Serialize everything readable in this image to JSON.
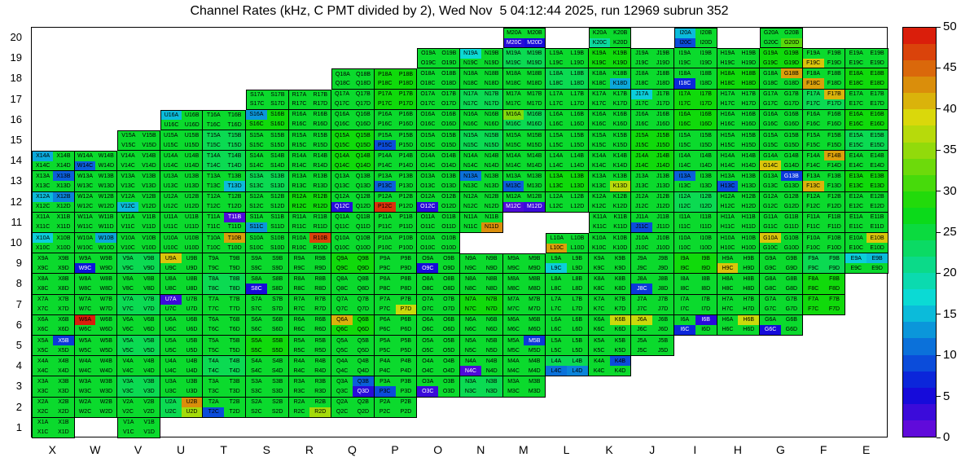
{
  "chart_data": {
    "type": "heatmap",
    "title": "Channel Rates (kHz, C PMT divided by 2), Wed Nov  5 04:12:44 2025, run 12969 subrun 352",
    "value_unit": "kHz",
    "columns": [
      "X",
      "W",
      "V",
      "U",
      "T",
      "S",
      "R",
      "Q",
      "P",
      "O",
      "N",
      "M",
      "L",
      "K",
      "J",
      "I",
      "H",
      "G",
      "F",
      "E"
    ],
    "rows": [
      20,
      19,
      18,
      17,
      16,
      15,
      14,
      13,
      12,
      11,
      10,
      9,
      8,
      7,
      6,
      5,
      4,
      3,
      2,
      1
    ],
    "sub_cells": [
      "A",
      "B",
      "C",
      "D"
    ],
    "colorbar": {
      "min": 0,
      "max": 50,
      "ticks": [
        0,
        5,
        10,
        15,
        20,
        25,
        30,
        35,
        40,
        45,
        50
      ]
    },
    "value_scale_per_char": 2,
    "row_block_values": {
      "20": "...........d.d.d.d..",
      "19": ".........ddcdedddedd",
      "18": ".......dedddcdddedde",
      "17": ".....dddedcddddeddcd",
      "16": "...ddedddddcdddeddde",
      "15": "..ddcddeddcdddeddddc",
      "14": "ddddcddeddddddeddddd",
      "13": "dddddcddddddedddddde",
      "12": "ddddddeddddddddcdddd",
      "11": "ddddddddddd..ddddddd",
      "10": "dddddddddd..dddddddd",
      "9": "ddcddddedddddddeddcd",
      "8": "ddddcddddddddddddde.",
      "7": "ddcdddddddeddddddde.",
      "6": "dddddddedddddddddd..",
      "5": "ddcddeddddddddd.....",
      "4": "ddddcdddddddcd......",
      "3": "ddcdddddddcd........",
      "2": "dddcddddd...........",
      "1": "d.d................."
    },
    "cell_value_overrides": {
      "X14A": 14,
      "X13B": 10,
      "X12A": 15,
      "X12B": 12,
      "X10A": 16,
      "X5B": 8,
      "W14C": 10,
      "W10B": 14,
      "W9C": 6,
      "W6A": 49,
      "V12C": 15,
      "U16A": 15,
      "U9A": 40,
      "U7A": 3,
      "U2B": 43,
      "U2D": 36,
      "T13D": 15,
      "T11B": 2,
      "T10B": 42,
      "T2C": 9,
      "S16A": 13,
      "S11C": 13,
      "S8C": 5,
      "R10B": 47,
      "R2D": 36,
      "Q12C": 4,
      "Q6A": 41,
      "Q3B": 10,
      "Q3D": 4,
      "P15C": 9,
      "P13C": 10,
      "P12C": 48,
      "P7D": 38,
      "P3C": 9,
      "O12C": 4,
      "O9C": 5,
      "O3C": 3,
      "N19A": 17,
      "N13A": 11,
      "N11D": 43,
      "N4C": 2,
      "M20C": 4,
      "M20D": 5,
      "M16A": 34,
      "M13C": 10,
      "M12C": 2,
      "M12D": 3,
      "M5B": 8,
      "L10C": 42,
      "L9C": 16,
      "L4C": 11,
      "L4D": 12,
      "K20C": 20,
      "K18D": 14,
      "K13D": 37,
      "K6B": 38,
      "K4B": 9,
      "J17A": 16,
      "J11C": 9,
      "J8C": 8,
      "J6A": 38,
      "I20A": 15,
      "I20C": 9,
      "I18C": 7,
      "I13A": 10,
      "I6B": 4,
      "I6C": 7,
      "H13C": 9,
      "H9C": 40,
      "H6B": 38,
      "G20D": 32,
      "G18B": 42,
      "G14C": 40,
      "G13B": 8,
      "G10A": 40,
      "G6C": 5,
      "F19C": 40,
      "F18C": 42,
      "F17B": 41,
      "F14B": 42,
      "F13C": 41,
      "E10B": 40,
      "E9A": 16,
      "E9B": 15
    }
  }
}
